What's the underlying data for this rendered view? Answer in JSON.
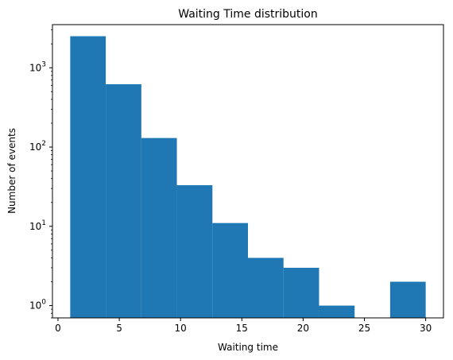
{
  "chart_data": {
    "type": "bar",
    "title": "Waiting Time distribution",
    "xlabel": "Waiting time",
    "ylabel": "Number of events",
    "y_scale": "log",
    "xlim": [
      -0.45,
      31.45
    ],
    "ylim": [
      0.7,
      3500
    ],
    "grid": false,
    "bar_color": "#1f77b4",
    "bins": [
      {
        "start": 1.0,
        "end": 3.9,
        "count": 2500
      },
      {
        "start": 3.9,
        "end": 6.8,
        "count": 620
      },
      {
        "start": 6.8,
        "end": 9.7,
        "count": 130
      },
      {
        "start": 9.7,
        "end": 12.6,
        "count": 33
      },
      {
        "start": 12.6,
        "end": 15.5,
        "count": 11
      },
      {
        "start": 15.5,
        "end": 18.4,
        "count": 4
      },
      {
        "start": 18.4,
        "end": 21.3,
        "count": 3
      },
      {
        "start": 21.3,
        "end": 24.2,
        "count": 1
      },
      {
        "start": 24.2,
        "end": 27.1,
        "count": 0
      },
      {
        "start": 27.1,
        "end": 30.0,
        "count": 2
      }
    ],
    "x_ticks": [
      {
        "value": 0,
        "label": "0"
      },
      {
        "value": 5,
        "label": "5"
      },
      {
        "value": 10,
        "label": "10"
      },
      {
        "value": 15,
        "label": "15"
      },
      {
        "value": 20,
        "label": "20"
      },
      {
        "value": 25,
        "label": "25"
      },
      {
        "value": 30,
        "label": "30"
      }
    ],
    "y_ticks": [
      {
        "value": 1,
        "base": "10",
        "exp": "0"
      },
      {
        "value": 10,
        "base": "10",
        "exp": "1"
      },
      {
        "value": 100,
        "base": "10",
        "exp": "2"
      },
      {
        "value": 1000,
        "base": "10",
        "exp": "3"
      }
    ]
  }
}
